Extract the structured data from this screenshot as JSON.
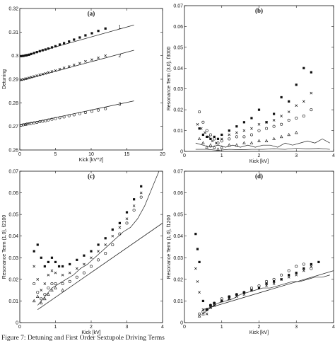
{
  "caption": "Figure 7: Detuning and First Order Sextupole Driving Terms",
  "chart_data": [
    {
      "id": "a",
      "type": "scatter",
      "title": "(a)",
      "xlabel": "Kick [kV^2]",
      "ylabel": "Detuning",
      "xlim": [
        0,
        20
      ],
      "ylim": [
        0.26,
        0.32
      ],
      "xticks": [
        0,
        5,
        10,
        15,
        20
      ],
      "yticks": [
        0.26,
        0.27,
        0.28,
        0.29,
        0.3,
        0.31,
        0.32
      ],
      "xticklabels": [
        "0",
        "5",
        "10",
        "15",
        "20"
      ],
      "yticklabels": [
        "0.26",
        "0.27",
        "0.28",
        "0.29",
        "0.3",
        "0.31",
        "0.32"
      ],
      "curve_labels": [
        {
          "text": "1",
          "x": 14.0,
          "y": 0.3115
        },
        {
          "text": "2",
          "x": 14.0,
          "y": 0.2993
        },
        {
          "text": "3",
          "x": 14.0,
          "y": 0.2787
        }
      ],
      "series": [
        {
          "marker": "square",
          "x": [
            0.2,
            0.5,
            0.8,
            1.0,
            1.3,
            1.6,
            2.0,
            2.4,
            2.8,
            3.2,
            3.6,
            4.0,
            4.5,
            5.0,
            5.6,
            6.2,
            6.9,
            7.6,
            8.4,
            9.2,
            10.1,
            11.0,
            12.0
          ],
          "y": [
            0.2998,
            0.2999,
            0.3001,
            0.3002,
            0.3004,
            0.3007,
            0.3011,
            0.3015,
            0.3019,
            0.3023,
            0.3026,
            0.303,
            0.3035,
            0.304,
            0.3047,
            0.3053,
            0.306,
            0.3068,
            0.3077,
            0.3086,
            0.3095,
            0.3105,
            0.3115
          ]
        },
        {
          "marker": "x",
          "x": [
            0.2,
            0.5,
            0.8,
            1.0,
            1.3,
            1.6,
            2.0,
            2.4,
            2.8,
            3.2,
            3.6,
            4.0,
            4.5,
            5.0,
            5.6,
            6.2,
            6.9,
            7.6,
            8.4,
            9.2,
            10.1,
            11.0,
            12.0
          ],
          "y": [
            0.2898,
            0.29,
            0.2902,
            0.2903,
            0.2906,
            0.2909,
            0.2912,
            0.2915,
            0.2919,
            0.2922,
            0.2925,
            0.2929,
            0.2933,
            0.2937,
            0.2943,
            0.2948,
            0.2954,
            0.2961,
            0.2968,
            0.2976,
            0.2983,
            0.2991,
            0.3
          ]
        },
        {
          "marker": "circle",
          "x": [
            0.2,
            0.5,
            0.8,
            1.0,
            1.3,
            1.6,
            2.0,
            2.4,
            2.8,
            3.2,
            3.6,
            4.0,
            4.5,
            5.0,
            5.6,
            6.2,
            6.9,
            7.6,
            8.4,
            9.2,
            10.1,
            11.0,
            12.0
          ],
          "y": [
            0.2705,
            0.2707,
            0.2708,
            0.271,
            0.2711,
            0.2713,
            0.2715,
            0.2717,
            0.272,
            0.2722,
            0.2724,
            0.2727,
            0.273,
            0.2733,
            0.2737,
            0.274,
            0.2745,
            0.2749,
            0.2754,
            0.2759,
            0.2764,
            0.2769,
            0.2775
          ]
        }
      ],
      "fit_lines": [
        {
          "x": [
            0,
            16
          ],
          "y": [
            0.2995,
            0.313
          ]
        },
        {
          "x": [
            0,
            16
          ],
          "y": [
            0.2893,
            0.3023
          ]
        },
        {
          "x": [
            0,
            16
          ],
          "y": [
            0.2705,
            0.2808
          ]
        }
      ]
    },
    {
      "id": "b",
      "type": "scatter",
      "title": "(b)",
      "xlabel": "Kick [kV]",
      "ylabel": "Resonance Term (3,0), f3000",
      "xlim": [
        0,
        4
      ],
      "ylim": [
        0,
        0.07
      ],
      "xticks": [
        0,
        1,
        2,
        3,
        4
      ],
      "yticks": [
        0,
        0.01,
        0.02,
        0.03,
        0.04,
        0.05,
        0.06,
        0.07
      ],
      "xticklabels": [
        "0",
        "1",
        "2",
        "3",
        "4"
      ],
      "yticklabels": [
        "0",
        "0.01",
        "0.02",
        "0.03",
        "0.04",
        "0.05",
        "0.06",
        "0.07"
      ],
      "series": [
        {
          "marker": "square",
          "x": [
            0.4,
            0.5,
            0.6,
            0.7,
            0.8,
            0.9,
            1.0,
            1.2,
            1.4,
            1.6,
            1.8,
            2.0,
            2.2,
            2.4,
            2.6,
            2.8,
            3.0,
            3.2,
            3.4
          ],
          "y": [
            0.011,
            0.008,
            0.007,
            0.006,
            0.007,
            0.006,
            0.008,
            0.01,
            0.012,
            0.014,
            0.016,
            0.02,
            0.014,
            0.018,
            0.026,
            0.024,
            0.032,
            0.04,
            0.038
          ]
        },
        {
          "marker": "x",
          "x": [
            0.35,
            0.45,
            0.55,
            0.65,
            0.75,
            0.85,
            1.0,
            1.2,
            1.4,
            1.6,
            1.8,
            2.0,
            2.2,
            2.4,
            2.6,
            2.8,
            3.0,
            3.2,
            3.4
          ],
          "y": [
            0.013,
            0.011,
            0.009,
            0.007,
            0.005,
            0.004,
            0.006,
            0.008,
            0.009,
            0.01,
            0.011,
            0.013,
            0.014,
            0.015,
            0.017,
            0.019,
            0.022,
            0.024,
            0.028
          ]
        },
        {
          "marker": "circle",
          "x": [
            0.4,
            0.5,
            0.6,
            0.7,
            0.8,
            0.9,
            1.0,
            1.2,
            1.4,
            1.6,
            1.8,
            2.0,
            2.2,
            2.4,
            2.6,
            2.8,
            3.0,
            3.2,
            3.4
          ],
          "y": [
            0.019,
            0.014,
            0.01,
            0.008,
            0.006,
            0.004,
            0.005,
            0.006,
            0.007,
            0.007,
            0.008,
            0.01,
            0.011,
            0.012,
            0.013,
            0.015,
            0.016,
            0.017,
            0.02
          ]
        },
        {
          "marker": "triangle",
          "x": [
            0.4,
            0.5,
            0.6,
            0.7,
            0.8,
            0.9,
            1.0,
            1.2,
            1.4,
            1.6,
            1.8,
            2.0,
            2.2,
            2.4,
            2.6,
            2.8,
            3.0
          ],
          "y": [
            0.006,
            0.004,
            0.002,
            0.003,
            0.002,
            0.001,
            0.002,
            0.003,
            0.003,
            0.004,
            0.004,
            0.005,
            0.005,
            0.006,
            0.007,
            0.008,
            0.009
          ]
        }
      ],
      "curves": [
        {
          "x": [
            0.3,
            0.5,
            0.7,
            0.9,
            1.1,
            1.3,
            1.5,
            1.7,
            1.9,
            2.1,
            2.3,
            2.5,
            2.7,
            2.9,
            3.1,
            3.3,
            3.5,
            3.7,
            3.9
          ],
          "y": [
            0.004,
            0.003,
            0.002,
            0.003,
            0.002,
            0.003,
            0.002,
            0.003,
            0.002,
            0.003,
            0.003,
            0.002,
            0.004,
            0.003,
            0.004,
            0.005,
            0.004,
            0.006,
            0.004
          ]
        },
        {
          "x": [
            0.3,
            0.6,
            0.9,
            1.2,
            1.5,
            1.8,
            2.1,
            2.4,
            2.7,
            3.0,
            3.3,
            3.6,
            3.9
          ],
          "y": [
            0.001,
            0.001,
            0.0005,
            0.001,
            0.0008,
            0.001,
            0.001,
            0.0012,
            0.001,
            0.0015,
            0.0012,
            0.0014,
            0.001
          ]
        }
      ]
    },
    {
      "id": "c",
      "type": "scatter",
      "title": "(c)",
      "xlabel": "Kick [kV]",
      "ylabel": "Resonance Term (1,0), f2100",
      "xlim": [
        0,
        4
      ],
      "ylim": [
        0,
        0.07
      ],
      "xticks": [
        0,
        1,
        2,
        3,
        4
      ],
      "yticks": [
        0,
        0.01,
        0.02,
        0.03,
        0.04,
        0.05,
        0.06,
        0.07
      ],
      "xticklabels": [
        "0",
        "1",
        "2",
        "3",
        "4"
      ],
      "yticklabels": [
        "0",
        "0.01",
        "0.02",
        "0.03",
        "0.04",
        "0.05",
        "0.06",
        "0.07"
      ],
      "series": [
        {
          "marker": "square",
          "x": [
            0.4,
            0.5,
            0.6,
            0.7,
            0.8,
            0.9,
            1.0,
            1.1,
            1.2,
            1.4,
            1.6,
            1.8,
            2.0,
            2.2,
            2.4,
            2.6,
            2.8,
            3.0,
            3.2,
            3.4
          ],
          "y": [
            0.033,
            0.036,
            0.03,
            0.026,
            0.028,
            0.03,
            0.028,
            0.026,
            0.026,
            0.027,
            0.029,
            0.031,
            0.033,
            0.036,
            0.039,
            0.043,
            0.046,
            0.051,
            0.057,
            0.063
          ]
        },
        {
          "marker": "x",
          "x": [
            0.4,
            0.5,
            0.6,
            0.7,
            0.8,
            0.9,
            1.0,
            1.2,
            1.4,
            1.6,
            1.8,
            2.0,
            2.2,
            2.4,
            2.6,
            2.8,
            3.0,
            3.2,
            3.4
          ],
          "y": [
            0.026,
            0.02,
            0.015,
            0.018,
            0.022,
            0.024,
            0.023,
            0.022,
            0.023,
            0.025,
            0.027,
            0.03,
            0.033,
            0.036,
            0.04,
            0.044,
            0.048,
            0.054,
            0.06
          ]
        },
        {
          "marker": "circle",
          "x": [
            0.4,
            0.5,
            0.6,
            0.7,
            0.8,
            0.9,
            1.0,
            1.2,
            1.4,
            1.6,
            1.8,
            2.0,
            2.2,
            2.4,
            2.6,
            2.8,
            3.0,
            3.2,
            3.4
          ],
          "y": [
            0.018,
            0.014,
            0.011,
            0.013,
            0.016,
            0.018,
            0.018,
            0.018,
            0.019,
            0.021,
            0.023,
            0.026,
            0.029,
            0.032,
            0.036,
            0.041,
            0.046,
            0.052,
            0.058
          ]
        },
        {
          "marker": "triangle",
          "x": [
            0.4,
            0.5,
            0.6,
            0.7,
            0.8,
            0.9,
            1.0,
            1.2
          ],
          "y": [
            0.01,
            0.012,
            0.009,
            0.011,
            0.013,
            0.015,
            0.016,
            0.015
          ]
        }
      ],
      "curves": [
        {
          "x": [
            0.5,
            0.7,
            0.9,
            1.1,
            1.3,
            1.5,
            1.7,
            1.9,
            2.1,
            2.3,
            2.5,
            2.7,
            2.9,
            3.1,
            3.3,
            3.5,
            3.7,
            3.9
          ],
          "y": [
            0.008,
            0.012,
            0.016,
            0.018,
            0.02,
            0.022,
            0.025,
            0.027,
            0.03,
            0.033,
            0.036,
            0.039,
            0.042,
            0.044,
            0.048,
            0.054,
            0.062,
            0.07
          ]
        }
      ],
      "fit_lines": [
        {
          "x": [
            0.5,
            4.0
          ],
          "y": [
            0.006,
            0.046
          ]
        }
      ]
    },
    {
      "id": "d",
      "type": "scatter",
      "title": "(d)",
      "xlabel": "Kick [kV]",
      "ylabel": "Resonance Term (1,0), f1200",
      "xlim": [
        0,
        4
      ],
      "ylim": [
        0,
        0.07
      ],
      "xticks": [
        0,
        1,
        2,
        3,
        4
      ],
      "yticks": [
        0,
        0.01,
        0.02,
        0.03,
        0.04,
        0.05,
        0.06,
        0.07
      ],
      "xticklabels": [
        "0",
        "1",
        "2",
        "3",
        "4"
      ],
      "yticklabels": [
        "0",
        "0.01",
        "0.02",
        "0.03",
        "0.04",
        "0.05",
        "0.06",
        "0.07"
      ],
      "series": [
        {
          "marker": "square",
          "x": [
            0.3,
            0.35,
            0.4,
            0.5,
            0.6,
            0.7,
            0.8,
            1.0,
            1.2,
            1.4,
            1.6,
            1.8,
            2.0,
            2.2,
            2.4,
            2.6,
            2.8,
            3.0,
            3.2,
            3.4,
            3.6
          ],
          "y": [
            0.041,
            0.034,
            0.028,
            0.01,
            0.006,
            0.008,
            0.009,
            0.01,
            0.012,
            0.013,
            0.014,
            0.015,
            0.016,
            0.018,
            0.019,
            0.02,
            0.022,
            0.023,
            0.025,
            0.027,
            0.028
          ]
        },
        {
          "marker": "x",
          "x": [
            0.3,
            0.35,
            0.4,
            0.5,
            0.6,
            0.7,
            0.8,
            1.0,
            1.2,
            1.4,
            1.6,
            1.8,
            2.0,
            2.2,
            2.4,
            2.6,
            2.8,
            3.0,
            3.2,
            3.4
          ],
          "y": [
            0.025,
            0.019,
            0.014,
            0.006,
            0.004,
            0.007,
            0.008,
            0.01,
            0.011,
            0.012,
            0.013,
            0.015,
            0.016,
            0.017,
            0.018,
            0.02,
            0.021,
            0.022,
            0.024,
            0.026
          ]
        },
        {
          "marker": "circle",
          "x": [
            0.4,
            0.5,
            0.6,
            0.7,
            0.8,
            1.0,
            1.2,
            1.4,
            1.6,
            1.8,
            2.0,
            2.2,
            2.4,
            2.6,
            2.8,
            3.0,
            3.2,
            3.4
          ],
          "y": [
            0.004,
            0.005,
            0.006,
            0.008,
            0.009,
            0.011,
            0.012,
            0.013,
            0.014,
            0.016,
            0.017,
            0.019,
            0.02,
            0.022,
            0.024,
            0.026,
            0.027,
            0.025
          ]
        },
        {
          "marker": "triangle",
          "x": [
            0.4,
            0.5,
            0.6,
            0.7,
            0.8,
            1.0,
            1.2
          ],
          "y": [
            0.003,
            0.004,
            0.006,
            0.007,
            0.008,
            0.01,
            0.011
          ]
        }
      ],
      "curves": [
        {
          "x": [
            0.5,
            0.7,
            0.9,
            1.1,
            1.3,
            1.5,
            1.7,
            1.9,
            2.1,
            2.3,
            2.5,
            2.7,
            2.9,
            3.1,
            3.3,
            3.5,
            3.7,
            3.9
          ],
          "y": [
            0.004,
            0.007,
            0.009,
            0.01,
            0.011,
            0.013,
            0.014,
            0.015,
            0.016,
            0.016,
            0.017,
            0.018,
            0.019,
            0.019,
            0.02,
            0.021,
            0.021,
            0.022
          ]
        }
      ],
      "fit_lines": [
        {
          "x": [
            0.5,
            4.0
          ],
          "y": [
            0.006,
            0.024
          ]
        }
      ]
    }
  ]
}
